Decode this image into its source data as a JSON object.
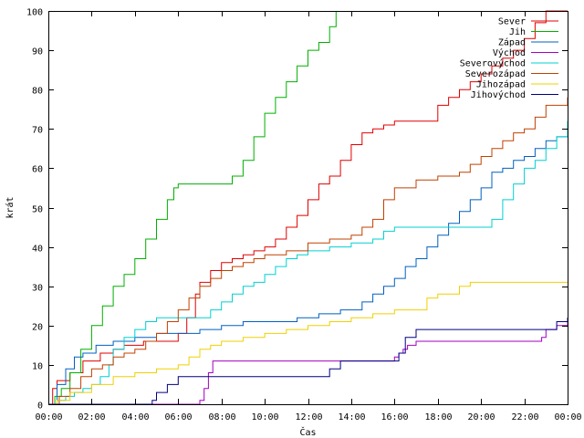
{
  "chart_data": {
    "type": "line",
    "step": true,
    "xlabel": "Čas",
    "ylabel": "krát",
    "xlim": [
      0,
      24
    ],
    "ylim": [
      0,
      100
    ],
    "x_ticks": [
      0,
      2,
      4,
      6,
      8,
      10,
      12,
      14,
      16,
      18,
      20,
      22,
      24
    ],
    "x_tick_labels": [
      "00:00",
      "02:00",
      "04:00",
      "06:00",
      "08:00",
      "10:00",
      "12:00",
      "14:00",
      "16:00",
      "18:00",
      "20:00",
      "22:00",
      "00:00"
    ],
    "y_ticks": [
      0,
      10,
      20,
      30,
      40,
      50,
      60,
      70,
      80,
      90,
      100
    ],
    "grid": false,
    "legend_position": "top-right",
    "series": [
      {
        "name": "Sever",
        "color": "#e00000",
        "x": [
          0,
          0.2,
          0.4,
          1.0,
          1.6,
          2.4,
          3.0,
          3.5,
          4.0,
          4.4,
          5.0,
          5.5,
          6.0,
          6.4,
          6.8,
          7.0,
          7.5,
          8.0,
          8.5,
          9.0,
          9.5,
          10.0,
          10.5,
          11.0,
          11.5,
          12.0,
          12.5,
          13.0,
          13.5,
          14.0,
          14.5,
          15.0,
          15.5,
          16.0,
          16.5,
          17.0,
          18.0,
          18.5,
          19.0,
          19.5,
          20.0,
          20.5,
          21.0,
          21.5,
          22.0,
          22.5,
          23.0,
          24.0
        ],
        "values": [
          0,
          4,
          6,
          8,
          11,
          13,
          14,
          15,
          15,
          16,
          16,
          16,
          18,
          22,
          28,
          31,
          34,
          36,
          37,
          38,
          39,
          40,
          42,
          45,
          48,
          52,
          56,
          58,
          62,
          66,
          69,
          70,
          71,
          72,
          72,
          72,
          76,
          78,
          80,
          82,
          84,
          86,
          88,
          90,
          93,
          97,
          100,
          100
        ]
      },
      {
        "name": "Jih",
        "color": "#00b000",
        "x": [
          0,
          0.3,
          0.6,
          1.0,
          1.5,
          2.0,
          2.5,
          3.0,
          3.5,
          4.0,
          4.5,
          5.0,
          5.5,
          5.8,
          6.0,
          6.2,
          7.0,
          7.5,
          8.0,
          8.5,
          9.0,
          9.5,
          10.0,
          10.5,
          11.0,
          11.5,
          12.0,
          12.5,
          13.0,
          13.3
        ],
        "values": [
          0,
          2,
          4,
          8,
          14,
          20,
          25,
          30,
          33,
          37,
          42,
          47,
          52,
          55,
          56,
          56,
          56,
          56,
          56,
          58,
          62,
          68,
          74,
          78,
          82,
          86,
          90,
          92,
          96,
          100
        ]
      },
      {
        "name": "Západ",
        "color": "#0060c0",
        "x": [
          0,
          0.4,
          0.8,
          1.2,
          1.6,
          2.2,
          3.0,
          4.0,
          5.0,
          6.0,
          7.0,
          8.0,
          9.0,
          10.0,
          10.8,
          11.5,
          12.5,
          13.5,
          14.5,
          15.0,
          15.5,
          16.0,
          16.5,
          17.0,
          17.5,
          18.0,
          18.5,
          19.0,
          19.5,
          20.0,
          20.5,
          21.0,
          21.5,
          22.0,
          22.5,
          23.0,
          23.5,
          24.0
        ],
        "values": [
          0,
          5,
          9,
          12,
          13,
          15,
          16,
          17,
          18,
          18,
          19,
          20,
          21,
          21,
          21,
          22,
          23,
          24,
          26,
          28,
          30,
          32,
          35,
          37,
          40,
          43,
          46,
          49,
          52,
          55,
          59,
          60,
          62,
          63,
          65,
          67,
          68,
          72
        ]
      },
      {
        "name": "Východ",
        "color": "#a000c0",
        "x": [
          0,
          6.8,
          7.0,
          7.2,
          7.4,
          7.6,
          8.0,
          10.0,
          12.0,
          14.0,
          15.8,
          16.0,
          16.2,
          16.4,
          16.6,
          17.0,
          18.0,
          19.0,
          20.0,
          21.0,
          22.0,
          22.8,
          23.0,
          23.5,
          24.0
        ],
        "values": [
          0,
          0,
          1,
          4,
          8,
          11,
          11,
          11,
          11,
          11,
          11,
          12,
          13,
          14,
          15,
          16,
          16,
          16,
          16,
          16,
          16,
          17,
          19,
          20,
          22
        ]
      },
      {
        "name": "Severovýchod",
        "color": "#00d0d0",
        "x": [
          0,
          0.4,
          0.8,
          1.2,
          1.6,
          2.0,
          2.4,
          2.8,
          3.0,
          3.5,
          4.0,
          4.5,
          5.0,
          6.0,
          7.0,
          7.5,
          8.0,
          8.5,
          9.0,
          9.5,
          10.0,
          10.5,
          11.0,
          11.5,
          12.0,
          13.0,
          14.0,
          15.0,
          15.5,
          16.0,
          17.0,
          18.0,
          19.0,
          20.0,
          20.5,
          21.0,
          21.5,
          22.0,
          22.5,
          23.0,
          23.5,
          24.0
        ],
        "values": [
          0,
          1,
          2,
          3,
          4,
          5,
          7,
          10,
          14,
          17,
          19,
          21,
          22,
          22,
          22,
          24,
          26,
          28,
          30,
          31,
          33,
          35,
          37,
          38,
          39,
          40,
          41,
          42,
          44,
          45,
          45,
          45,
          45,
          45,
          47,
          52,
          56,
          60,
          62,
          65,
          68,
          72
        ]
      },
      {
        "name": "Severozápad",
        "color": "#c04000",
        "x": [
          0,
          0.5,
          1.0,
          1.5,
          2.0,
          2.5,
          3.0,
          3.5,
          4.0,
          4.5,
          5.0,
          5.5,
          6.0,
          6.5,
          7.0,
          7.5,
          8.0,
          8.5,
          9.0,
          9.5,
          10.0,
          11.0,
          12.0,
          13.0,
          14.0,
          14.5,
          15.0,
          15.5,
          16.0,
          16.5,
          17.0,
          18.0,
          19.0,
          19.5,
          20.0,
          20.5,
          21.0,
          21.5,
          22.0,
          22.5,
          23.0,
          24.0
        ],
        "values": [
          0,
          2,
          4,
          7,
          9,
          10,
          12,
          13,
          14,
          16,
          18,
          21,
          24,
          27,
          30,
          32,
          34,
          35,
          36,
          37,
          38,
          39,
          41,
          42,
          43,
          45,
          47,
          52,
          55,
          55,
          57,
          58,
          59,
          61,
          63,
          65,
          67,
          69,
          70,
          73,
          76,
          78
        ]
      },
      {
        "name": "Jihozápad",
        "color": "#f0d000",
        "x": [
          0,
          0.4,
          1.0,
          2.0,
          3.0,
          4.0,
          5.0,
          6.0,
          6.5,
          7.0,
          7.5,
          8.0,
          9.0,
          10.0,
          11.0,
          12.0,
          13.0,
          14.0,
          15.0,
          16.0,
          17.0,
          17.5,
          18.0,
          18.5,
          19.0,
          19.5,
          20.0,
          21.0,
          22.0,
          23.0,
          24.0
        ],
        "values": [
          0,
          1,
          3,
          5,
          7,
          8,
          9,
          10,
          12,
          14,
          15,
          16,
          17,
          18,
          19,
          20,
          21,
          22,
          23,
          24,
          24,
          27,
          28,
          28,
          30,
          31,
          31,
          31,
          31,
          31,
          31
        ]
      },
      {
        "name": "Jihovýchod",
        "color": "#000080",
        "x": [
          0,
          4.5,
          4.8,
          5.0,
          5.5,
          6.0,
          6.5,
          7.0,
          8.0,
          9.0,
          10.0,
          11.0,
          12.0,
          13.0,
          13.5,
          14.0,
          15.0,
          16.0,
          16.2,
          16.5,
          17.0,
          18.0,
          19.0,
          20.0,
          21.0,
          22.0,
          23.0,
          23.5,
          24.0
        ],
        "values": [
          0,
          0,
          1,
          3,
          5,
          7,
          7,
          7,
          7,
          7,
          7,
          7,
          7,
          9,
          11,
          11,
          11,
          11,
          13,
          17,
          19,
          19,
          19,
          19,
          19,
          19,
          19,
          21,
          22
        ]
      }
    ]
  }
}
